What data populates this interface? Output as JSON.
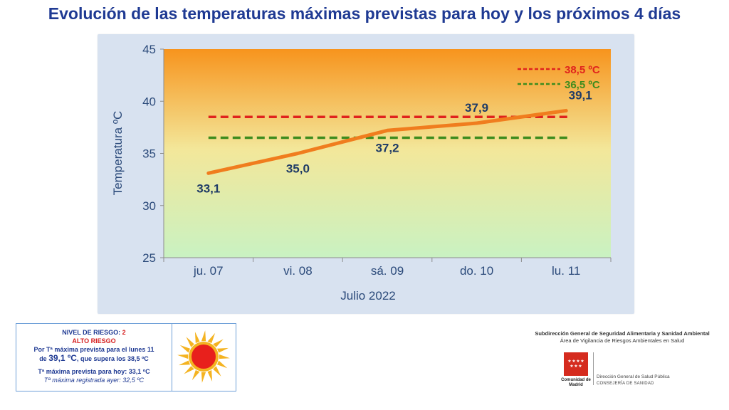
{
  "title": "Evolución de las temperaturas máximas previstas para hoy y los próximos 4 días",
  "chart_data": {
    "type": "line",
    "categories": [
      "ju. 07",
      "vi. 08",
      "sá. 09",
      "do. 10",
      "lu. 11"
    ],
    "series": [
      {
        "values": [
          33.1,
          35.0,
          37.2,
          37.9,
          39.1
        ],
        "color": "#f07d1e"
      }
    ],
    "value_labels": [
      "33,1",
      "35,0",
      "37,2",
      "37,9",
      "39,1"
    ],
    "thresholds": [
      {
        "name": "38,5 ºC",
        "value": 38.5,
        "color": "#e0231d"
      },
      {
        "name": "36,5 ºC",
        "value": 36.5,
        "color": "#3e8c1e"
      }
    ],
    "ylabel": "Temperatura ºC",
    "xlabel": "Julio 2022",
    "ylim": [
      25,
      45
    ],
    "yticks": [
      "25",
      "30",
      "35",
      "40",
      "45"
    ],
    "background_gradient": [
      "#f7941d",
      "#f3e79a",
      "#c9f2c2"
    ],
    "legend_position": "top-right",
    "grid": false
  },
  "risk_panel": {
    "level_label": "NIVEL DE RIESGO:",
    "level_value": "2",
    "risk_text": "ALTO RIESGO",
    "line1": "Por Tª máxima prevista para el lunes 11",
    "line2_pre": "de",
    "line2_value": "39,1 ºC",
    "line2_post": ", que supera los 38,5 ºC",
    "today_max": "Tª máxima prevista para hoy: 33,1 ºC",
    "yesterday_max": "Tª máxima registrada ayer: 32,5 ºC",
    "icon": "sun-icon"
  },
  "institution": {
    "line1": "Subdirección General de Seguridad Alimentaria y Sanidad Ambiental",
    "line2": "Área de Vigilancia de Riesgos Ambientales en Salud",
    "logo_name": "Comunidad de Madrid",
    "direction": "Dirección General de Salud Pública",
    "consejeria": "CONSEJERÍA DE SANIDAD"
  }
}
